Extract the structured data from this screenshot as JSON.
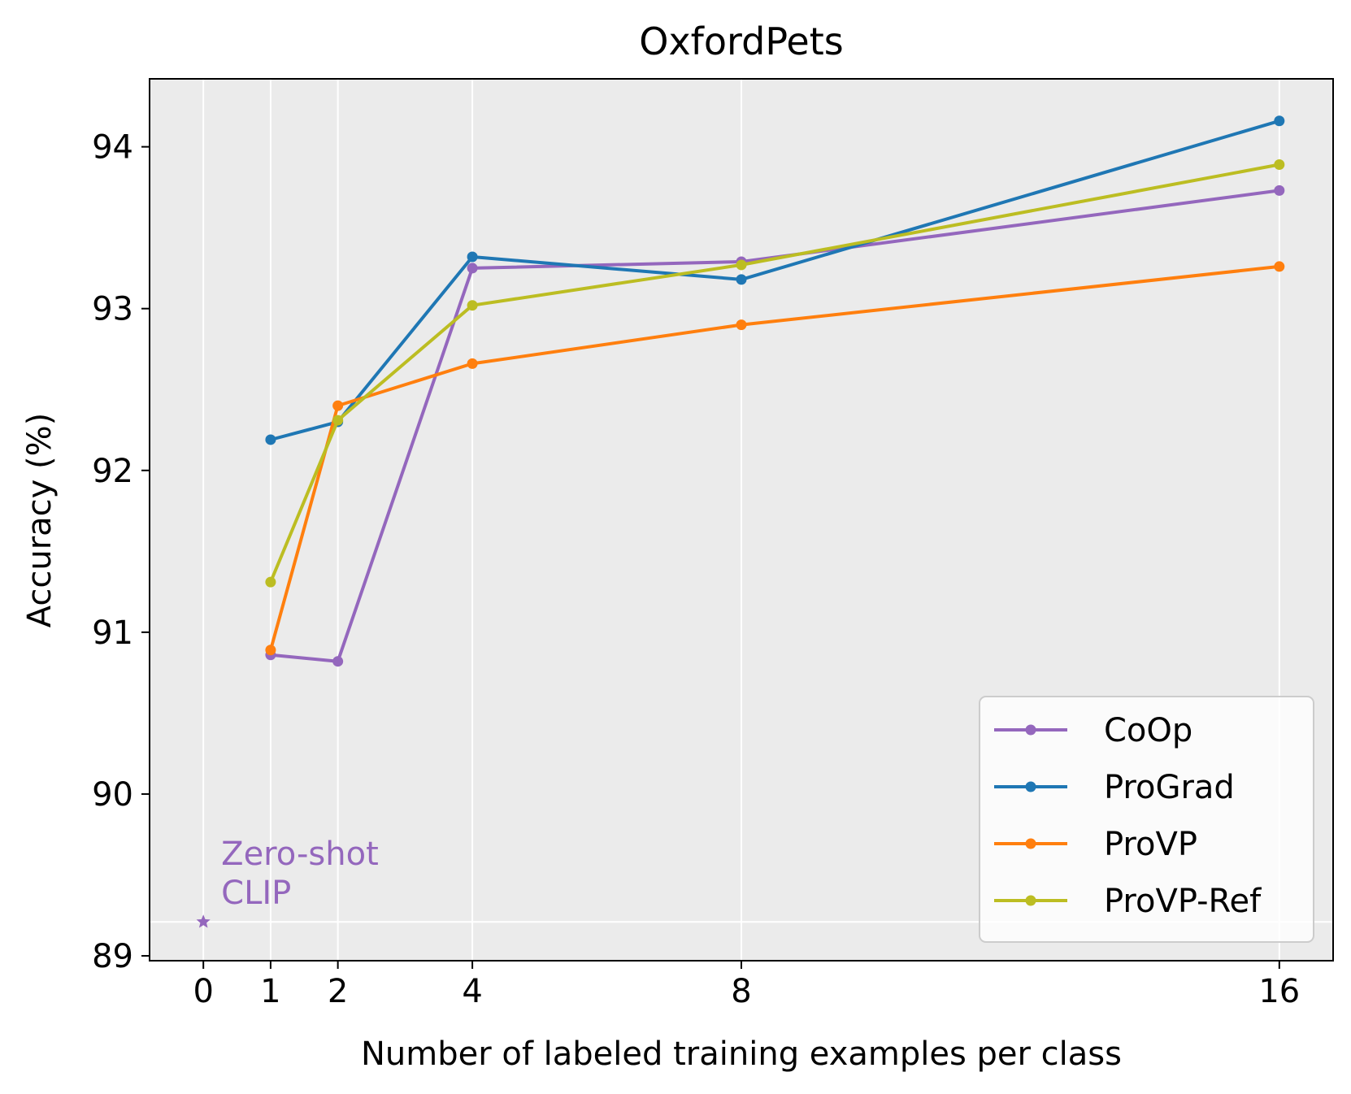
{
  "chart_data": {
    "type": "line",
    "title": "OxfordPets",
    "xlabel": "Number of labeled training examples per class",
    "ylabel": "Accuracy (%)",
    "x": [
      1,
      2,
      4,
      8,
      16
    ],
    "xticks": [
      0,
      1,
      2,
      4,
      8,
      16
    ],
    "xlim": [
      -0.8,
      16.8
    ],
    "yticks": [
      89,
      90,
      91,
      92,
      93,
      94
    ],
    "ylim": [
      88.97,
      94.42
    ],
    "grid": true,
    "legend_position": "lower-right",
    "series": [
      {
        "name": "CoOp",
        "color": "#9467bd",
        "values": [
          90.86,
          90.82,
          93.25,
          93.29,
          93.73
        ]
      },
      {
        "name": "ProGrad",
        "color": "#1f77b4",
        "values": [
          92.19,
          92.3,
          93.32,
          93.18,
          94.16
        ]
      },
      {
        "name": "ProVP",
        "color": "#ff7f0e",
        "values": [
          90.89,
          92.4,
          92.66,
          92.9,
          93.26
        ]
      },
      {
        "name": "ProVP-Ref",
        "color": "#bcbd22",
        "values": [
          91.31,
          92.31,
          93.02,
          93.27,
          93.89
        ]
      }
    ],
    "zero_shot": {
      "label_line1": "Zero-shot",
      "label_line2": "CLIP",
      "x": 0,
      "value": 89.21,
      "color": "#9467bd"
    }
  }
}
